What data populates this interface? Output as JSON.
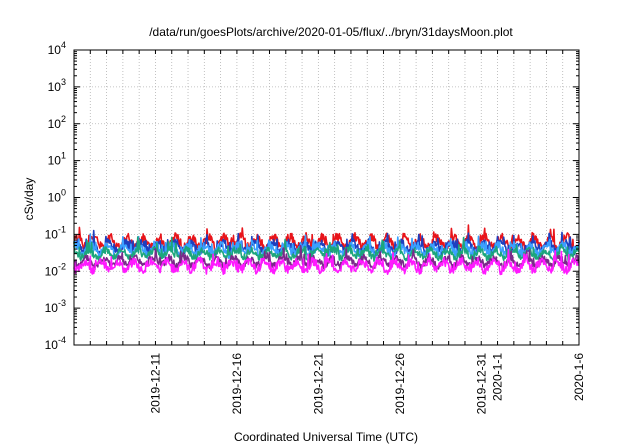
{
  "chart_data": {
    "type": "line",
    "title": "/data/run/goesPlots/archive/2020-01-05/flux/../bryn/31daysMoon.plot",
    "xlabel": "Coordinated Universal Time (UTC)",
    "ylabel": "cSv/day",
    "y_scale": "log",
    "ylim_exp": [
      -4,
      4
    ],
    "y_ticks": [
      {
        "base": "10",
        "exp": "-4"
      },
      {
        "base": "10",
        "exp": "-3"
      },
      {
        "base": "10",
        "exp": "-2"
      },
      {
        "base": "10",
        "exp": "-1"
      },
      {
        "base": "10",
        "exp": "0"
      },
      {
        "base": "10",
        "exp": "1"
      },
      {
        "base": "10",
        "exp": "2"
      },
      {
        "base": "10",
        "exp": "3"
      },
      {
        "base": "10",
        "exp": "4"
      }
    ],
    "xlim": [
      "2019-12-06",
      "2020-01-06"
    ],
    "x_ticks": [
      "2019-12-11",
      "2019-12-16",
      "2019-12-21",
      "2019-12-26",
      "2019-12-31",
      "2020-1-1",
      "2020-1-6"
    ],
    "grid": true,
    "series": [
      {
        "color": "#e8141a",
        "base": 0.06,
        "amp": 1.7,
        "seed": 1
      },
      {
        "color": "#1e3fbf",
        "base": 0.045,
        "amp": 1.6,
        "seed": 2
      },
      {
        "color": "#3aa0ff",
        "base": 0.038,
        "amp": 1.6,
        "seed": 3
      },
      {
        "color": "#1ca67c",
        "base": 0.03,
        "amp": 1.5,
        "seed": 4
      },
      {
        "color": "#7a2a8a",
        "base": 0.018,
        "amp": 1.5,
        "seed": 5
      },
      {
        "color": "#ff1aff",
        "base": 0.014,
        "amp": 1.6,
        "seed": 6
      }
    ]
  }
}
